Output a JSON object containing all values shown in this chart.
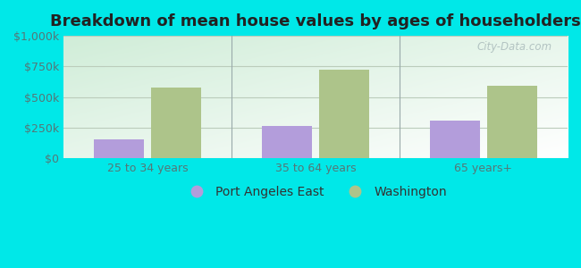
{
  "title": "Breakdown of mean house values by ages of householders",
  "categories": [
    "25 to 34 years",
    "35 to 64 years",
    "65 years+"
  ],
  "series": {
    "Port Angeles East": [
      150000,
      260000,
      310000
    ],
    "Washington": [
      580000,
      720000,
      590000
    ]
  },
  "colors": {
    "Port Angeles East": "#b39ddb",
    "Washington": "#adc48a"
  },
  "ylim": [
    0,
    1000000
  ],
  "yticks": [
    0,
    250000,
    500000,
    750000,
    1000000
  ],
  "ytick_labels": [
    "$0",
    "$250k",
    "$500k",
    "$750k",
    "$1,000k"
  ],
  "background_outer": "#00e8e8",
  "grid_color": "#bbccbb",
  "bar_width": 0.3,
  "title_fontsize": 13,
  "axis_label_fontsize": 9,
  "legend_fontsize": 10,
  "watermark_text": "City-Data.com",
  "separator_color": "#99aaaa",
  "tick_label_color": "#557777"
}
